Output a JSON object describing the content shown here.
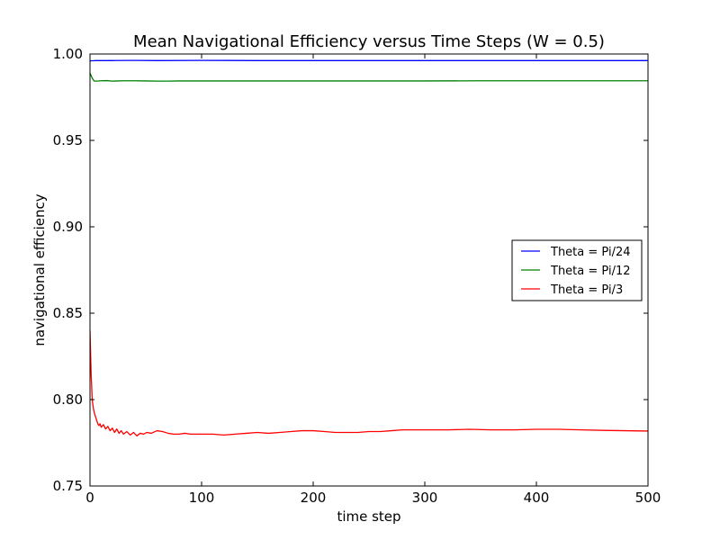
{
  "chart_data": {
    "type": "line",
    "title": "Mean Navigational Efficiency versus Time Steps (W = 0.5)",
    "xlabel": "time step",
    "ylabel": "navigational efficiency",
    "xlim": [
      0,
      500
    ],
    "ylim": [
      0.75,
      1.0
    ],
    "x_ticks": [
      0,
      100,
      200,
      300,
      400,
      500
    ],
    "x_tick_labels": [
      "0",
      "100",
      "200",
      "300",
      "400",
      "500"
    ],
    "y_ticks": [
      0.75,
      0.8,
      0.85,
      0.9,
      0.95,
      1.0
    ],
    "y_tick_labels": [
      "0.75",
      "0.80",
      "0.85",
      "0.90",
      "0.95",
      "1.00"
    ],
    "grid": false,
    "legend_position": "center-right",
    "series": [
      {
        "name": "Theta = Pi/24",
        "color": "#0000ff",
        "x": [
          0,
          1,
          3,
          5,
          10,
          20,
          40,
          60,
          100,
          150,
          200,
          250,
          300,
          350,
          400,
          450,
          500
        ],
        "y": [
          0.996,
          0.9961,
          0.9961,
          0.9962,
          0.9962,
          0.9962,
          0.9963,
          0.9962,
          0.9963,
          0.9962,
          0.9962,
          0.9962,
          0.9962,
          0.9962,
          0.9962,
          0.9962,
          0.9962
        ]
      },
      {
        "name": "Theta = Pi/12",
        "color": "#008000",
        "x": [
          0,
          1,
          2,
          3,
          4,
          6,
          10,
          15,
          20,
          30,
          40,
          50,
          60,
          70,
          80,
          100,
          150,
          200,
          250,
          300,
          350,
          400,
          450,
          500
        ],
        "y": [
          0.989,
          0.9875,
          0.986,
          0.985,
          0.9843,
          0.9843,
          0.9845,
          0.9846,
          0.9843,
          0.9845,
          0.9845,
          0.9844,
          0.9843,
          0.9843,
          0.9844,
          0.9844,
          0.9844,
          0.9844,
          0.9844,
          0.9844,
          0.9845,
          0.9845,
          0.9845,
          0.9845
        ]
      },
      {
        "name": "Theta = Pi/3",
        "color": "#ff0000",
        "x": [
          0,
          1,
          2,
          3,
          4,
          5,
          6,
          7,
          8,
          9,
          10,
          12,
          14,
          16,
          18,
          20,
          22,
          24,
          26,
          28,
          30,
          33,
          36,
          39,
          42,
          45,
          48,
          51,
          55,
          60,
          65,
          70,
          75,
          80,
          85,
          90,
          95,
          100,
          110,
          120,
          130,
          140,
          150,
          160,
          170,
          180,
          190,
          200,
          210,
          220,
          230,
          240,
          250,
          260,
          270,
          280,
          290,
          300,
          320,
          340,
          360,
          380,
          400,
          420,
          440,
          460,
          480,
          500
        ],
        "y": [
          0.84,
          0.815,
          0.8,
          0.795,
          0.792,
          0.79,
          0.788,
          0.786,
          0.785,
          0.786,
          0.784,
          0.7855,
          0.783,
          0.7845,
          0.782,
          0.7835,
          0.781,
          0.783,
          0.7805,
          0.782,
          0.78,
          0.7815,
          0.7795,
          0.781,
          0.779,
          0.7805,
          0.78,
          0.781,
          0.7805,
          0.782,
          0.7815,
          0.7805,
          0.78,
          0.78,
          0.7805,
          0.78,
          0.78,
          0.78,
          0.78,
          0.7795,
          0.78,
          0.7805,
          0.781,
          0.7805,
          0.781,
          0.7815,
          0.782,
          0.782,
          0.7815,
          0.781,
          0.781,
          0.781,
          0.7815,
          0.7815,
          0.782,
          0.7825,
          0.7825,
          0.7825,
          0.7825,
          0.7828,
          0.7825,
          0.7825,
          0.7828,
          0.7828,
          0.7825,
          0.7822,
          0.782,
          0.7818
        ]
      }
    ]
  }
}
